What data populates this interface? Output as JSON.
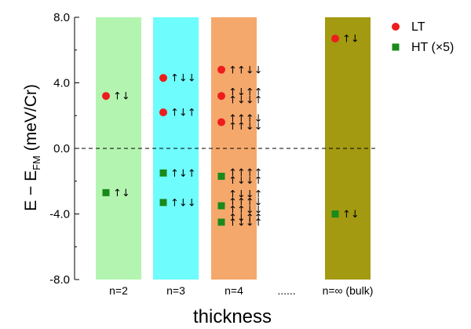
{
  "chart_data": {
    "type": "scatter",
    "ylim": [
      -8.0,
      8.0
    ],
    "yticks": [
      "8.0",
      "4.0",
      "0.0",
      "-4.0",
      "-8.0"
    ],
    "ylabel": {
      "main": "E − E",
      "sub": "FM",
      "tail": " (meV/Cr)"
    },
    "xlabel": "thickness",
    "reference_line_y": 0.0,
    "categories": [
      {
        "label": "n=2",
        "color": "#b3f5b0"
      },
      {
        "label": "n=3",
        "color": "#6ffcfc"
      },
      {
        "label": "n=4",
        "color": "#f5a86b"
      },
      {
        "label": "n=∞ (bulk)",
        "color": "#a39a12"
      }
    ],
    "ellipsis": "......",
    "series": [
      {
        "name": "LT",
        "marker": "circle",
        "color": "#ee1c1c",
        "points": [
          {
            "category": 0,
            "y": 3.2,
            "spin": [
              "↑↓"
            ]
          },
          {
            "category": 1,
            "y": 4.3,
            "spin": [
              "↑↓↓"
            ]
          },
          {
            "category": 1,
            "y": 2.2,
            "spin": [
              "↑↓↑"
            ]
          },
          {
            "category": 2,
            "y": 4.8,
            "spin": [
              "↑↑↓↓"
            ]
          },
          {
            "category": 2,
            "y": 3.2,
            "spin": [
              "↑↓↑↑",
              "↑↓↓↑"
            ]
          },
          {
            "category": 2,
            "y": 1.6,
            "spin": [
              "↑↑↑↓",
              "↑↑↓↓"
            ]
          },
          {
            "category": 3,
            "y": 6.7,
            "spin": [
              "↑↓"
            ]
          }
        ]
      },
      {
        "name": "HT (×5)",
        "marker": "square",
        "color": "#1a8a1a",
        "points": [
          {
            "category": 0,
            "y": -2.7,
            "spin": [
              "↑↓"
            ]
          },
          {
            "category": 1,
            "y": -1.5,
            "spin": [
              "↑↓↑"
            ]
          },
          {
            "category": 1,
            "y": -3.3,
            "spin": [
              "↑↓↓"
            ]
          },
          {
            "category": 2,
            "y": -1.7,
            "spin": [
              "↑↑↑↑",
              "↑↓↓↑"
            ]
          },
          {
            "category": 2,
            "y": -3.5,
            "spin": [
              "↑↓↓↑",
              "↑↑↑↓",
              "↑↑↓↓",
              "↑↓↑↑"
            ]
          },
          {
            "category": 2,
            "y": -4.5,
            "spin": [
              "↑↓↓↑"
            ]
          },
          {
            "category": 3,
            "y": -4.0,
            "spin": [
              "↑↓"
            ]
          }
        ]
      }
    ],
    "legend": {
      "position": "top-right",
      "entries": [
        "LT",
        "HT (×5)"
      ]
    }
  }
}
